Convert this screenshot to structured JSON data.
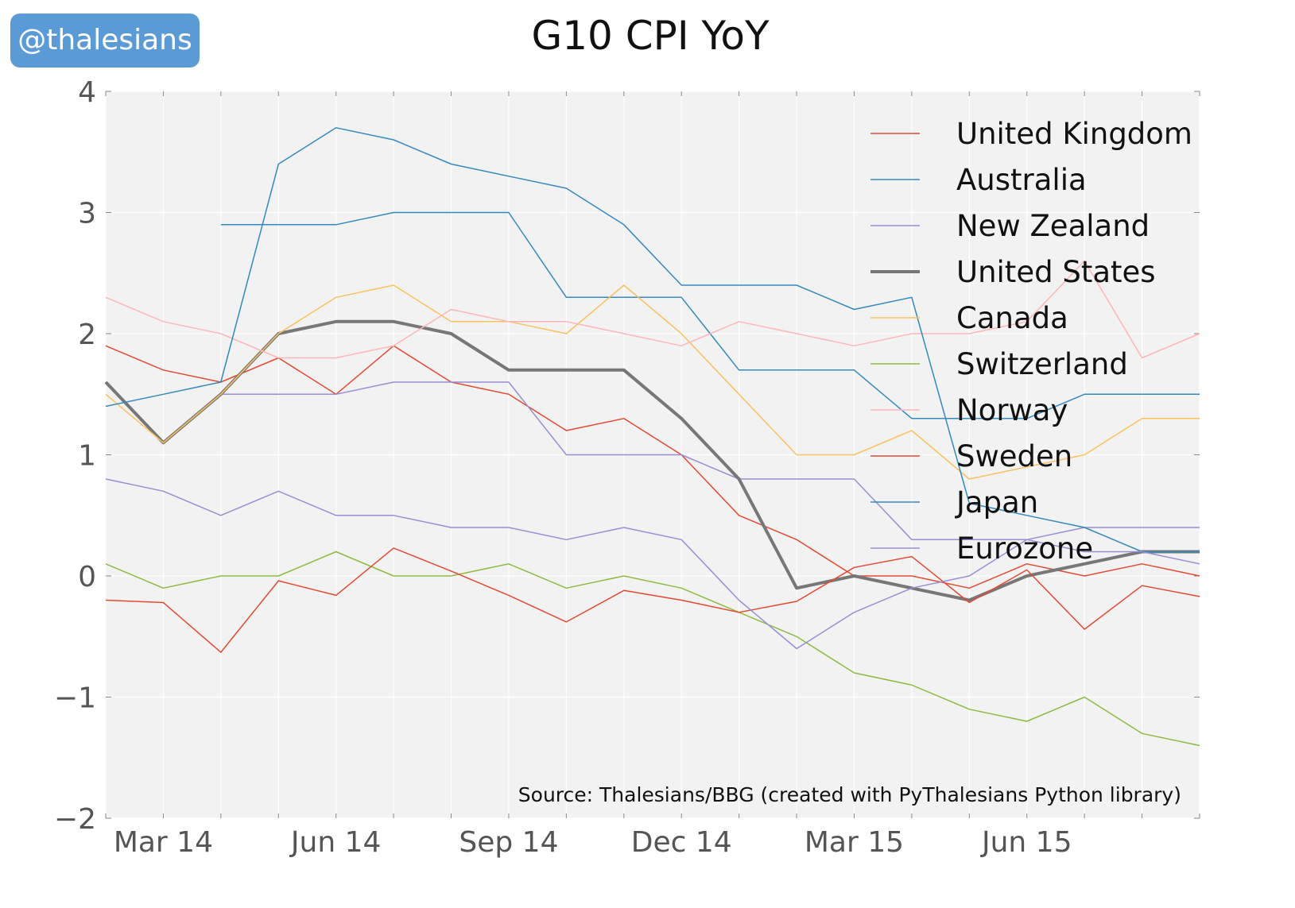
{
  "badge": {
    "text": "@thalesians"
  },
  "chart_data": {
    "type": "line",
    "title": "G10 CPI YoY",
    "source": "Source: Thalesians/BBG (created with PyThalesians Python library)",
    "xlabel": "",
    "ylabel": "",
    "x": [
      "2014-02",
      "2014-03",
      "2014-04",
      "2014-05",
      "2014-06",
      "2014-07",
      "2014-08",
      "2014-09",
      "2014-10",
      "2014-11",
      "2014-12",
      "2015-01",
      "2015-02",
      "2015-03",
      "2015-04",
      "2015-05",
      "2015-06",
      "2015-07",
      "2015-08",
      "2015-09"
    ],
    "x_ticks": [
      {
        "x": "2014-03",
        "label": "Mar 14"
      },
      {
        "x": "2014-06",
        "label": "Jun 14"
      },
      {
        "x": "2014-09",
        "label": "Sep 14"
      },
      {
        "x": "2014-12",
        "label": "Dec 14"
      },
      {
        "x": "2015-03",
        "label": "Mar 15"
      },
      {
        "x": "2015-06",
        "label": "Jun 15"
      }
    ],
    "y_ticks": [
      {
        "value": 4,
        "label": "4"
      },
      {
        "value": 3,
        "label": "3"
      },
      {
        "value": 2,
        "label": "2"
      },
      {
        "value": 1,
        "label": "1"
      },
      {
        "value": 0,
        "label": "0"
      },
      {
        "value": -1,
        "label": "−1"
      },
      {
        "value": -2,
        "label": "−2"
      }
    ],
    "xlim": [
      "2014-02",
      "2015-09"
    ],
    "ylim": [
      -2,
      4
    ],
    "grid": true,
    "legend_position": "top-right",
    "colors": {
      "plot_background": "#f2f2f2",
      "grid": "#ffffff",
      "tick_label": "#555555"
    },
    "series": [
      {
        "name": "United Kingdom",
        "color": "#e24a33",
        "width": 1.5,
        "values": [
          1.9,
          1.7,
          1.6,
          1.8,
          1.5,
          1.9,
          1.6,
          1.5,
          1.2,
          1.3,
          1.0,
          0.5,
          0.3,
          0.0,
          0.0,
          -0.1,
          0.1,
          0.0,
          0.1,
          0.0
        ]
      },
      {
        "name": "Australia",
        "color": "#348abd",
        "width": 1.5,
        "values": [
          null,
          null,
          2.9,
          2.9,
          2.9,
          3.0,
          3.0,
          3.0,
          2.3,
          2.3,
          2.3,
          1.7,
          1.7,
          1.7,
          1.3,
          1.3,
          1.3,
          1.5,
          1.5,
          1.5
        ]
      },
      {
        "name": "New Zealand",
        "color": "#988ed5",
        "width": 1.5,
        "values": [
          null,
          null,
          1.5,
          1.5,
          1.5,
          1.6,
          1.6,
          1.6,
          1.0,
          1.0,
          1.0,
          0.8,
          0.8,
          0.8,
          0.3,
          0.3,
          0.3,
          0.4,
          0.4,
          0.4
        ]
      },
      {
        "name": "United States",
        "color": "#777777",
        "width": 4,
        "values": [
          1.6,
          1.1,
          1.5,
          2.0,
          2.1,
          2.1,
          2.0,
          1.7,
          1.7,
          1.7,
          1.3,
          0.8,
          -0.1,
          0.0,
          -0.1,
          -0.2,
          0.0,
          0.1,
          0.2,
          0.2
        ]
      },
      {
        "name": "Canada",
        "color": "#fbc15e",
        "width": 1.5,
        "values": [
          1.5,
          1.1,
          1.5,
          2.0,
          2.3,
          2.4,
          2.1,
          2.1,
          2.0,
          2.4,
          2.0,
          1.5,
          1.0,
          1.0,
          1.2,
          0.8,
          0.9,
          1.0,
          1.3,
          1.3
        ]
      },
      {
        "name": "Switzerland",
        "color": "#8eba42",
        "width": 1.5,
        "values": [
          0.1,
          -0.1,
          0.0,
          0.0,
          0.2,
          0.0,
          0.0,
          0.1,
          -0.1,
          0.0,
          -0.1,
          -0.3,
          -0.5,
          -0.8,
          -0.9,
          -1.1,
          -1.2,
          -1.0,
          -1.3,
          -1.4
        ]
      },
      {
        "name": "Norway",
        "color": "#ffb5b8",
        "width": 1.5,
        "values": [
          2.3,
          2.1,
          2.0,
          1.8,
          1.8,
          1.9,
          2.2,
          2.1,
          2.1,
          2.0,
          1.9,
          2.1,
          2.0,
          1.9,
          2.0,
          2.0,
          2.1,
          2.6,
          1.8,
          2.0
        ]
      },
      {
        "name": "Sweden",
        "color": "#e24a33",
        "width": 1.5,
        "values": [
          -0.2,
          -0.22,
          -0.63,
          -0.04,
          -0.16,
          0.23,
          0.04,
          -0.16,
          -0.38,
          -0.12,
          -0.2,
          -0.3,
          -0.21,
          0.07,
          0.16,
          -0.22,
          0.05,
          -0.44,
          -0.08,
          -0.17
        ]
      },
      {
        "name": "Japan",
        "color": "#348abd",
        "width": 1.5,
        "values": [
          1.4,
          1.5,
          1.6,
          3.4,
          3.7,
          3.6,
          3.4,
          3.3,
          3.2,
          2.9,
          2.4,
          2.4,
          2.4,
          2.2,
          2.3,
          0.6,
          0.5,
          0.4,
          0.2,
          0.2
        ]
      },
      {
        "name": "Eurozone",
        "color": "#988ed5",
        "width": 1.5,
        "values": [
          0.8,
          0.7,
          0.5,
          0.7,
          0.5,
          0.5,
          0.4,
          0.4,
          0.3,
          0.4,
          0.3,
          -0.2,
          -0.6,
          -0.3,
          -0.1,
          0.0,
          0.3,
          0.2,
          0.2,
          0.1
        ]
      }
    ]
  }
}
